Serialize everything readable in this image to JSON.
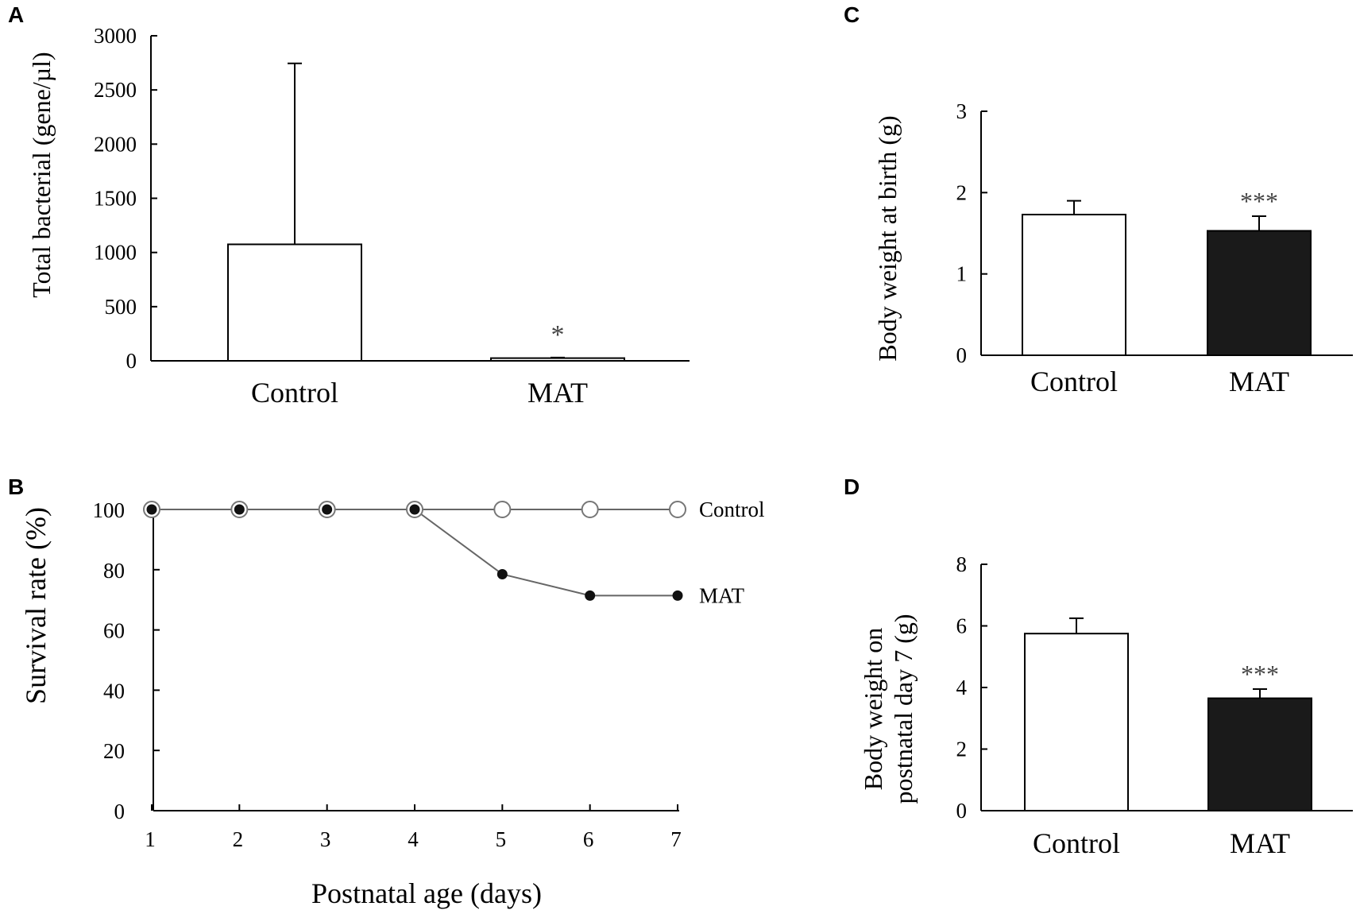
{
  "chart_data": [
    {
      "panel": "A",
      "type": "bar",
      "categories": [
        "Control",
        "MAT"
      ],
      "values": [
        1075,
        25
      ],
      "errors": [
        1670,
        5
      ],
      "bar_colors": [
        "#ffffff",
        "#ffffff"
      ],
      "ylabel": "Total bacterial (gene/µl)",
      "ylim": [
        0,
        3000
      ],
      "yticks": [
        "0",
        "500",
        "1000",
        "1500",
        "2000",
        "2500",
        "3000"
      ],
      "annotations": [
        "",
        "*"
      ]
    },
    {
      "panel": "B",
      "type": "line",
      "x": [
        1,
        2,
        3,
        4,
        5,
        6,
        7
      ],
      "xticks": [
        "1",
        "2",
        "3",
        "4",
        "5",
        "6",
        "7"
      ],
      "series": [
        {
          "name": "Control",
          "values": [
            100,
            100,
            100,
            100,
            100,
            100,
            100
          ],
          "marker": "open-circle"
        },
        {
          "name": "MAT",
          "values": [
            100,
            100,
            100,
            100,
            78.5,
            71.4,
            71.4
          ],
          "marker": "filled-circle"
        }
      ],
      "xlabel": "Postnatal age (days)",
      "ylabel": "Survival rate (%)",
      "ylim": [
        0,
        100
      ],
      "yticks": [
        "0",
        "20",
        "40",
        "60",
        "80",
        "100"
      ]
    },
    {
      "panel": "C",
      "type": "bar",
      "categories": [
        "Control",
        "MAT"
      ],
      "values": [
        1.73,
        1.53
      ],
      "errors": [
        0.17,
        0.18
      ],
      "bar_colors": [
        "#ffffff",
        "#1a1a1a"
      ],
      "ylabel": "Body weight at birth (g)",
      "ylim": [
        0,
        3
      ],
      "yticks": [
        "0",
        "1",
        "2",
        "3"
      ],
      "annotations": [
        "",
        "***"
      ]
    },
    {
      "panel": "D",
      "type": "bar",
      "categories": [
        "Control",
        "MAT"
      ],
      "values": [
        5.75,
        3.65
      ],
      "errors": [
        0.5,
        0.3
      ],
      "bar_colors": [
        "#ffffff",
        "#1a1a1a"
      ],
      "ylabel_lines": [
        "Body weight  on",
        "postnatal day 7 (g)"
      ],
      "ylim": [
        0,
        8
      ],
      "yticks": [
        "0",
        "2",
        "4",
        "6",
        "8"
      ],
      "annotations": [
        "",
        "***"
      ]
    }
  ]
}
